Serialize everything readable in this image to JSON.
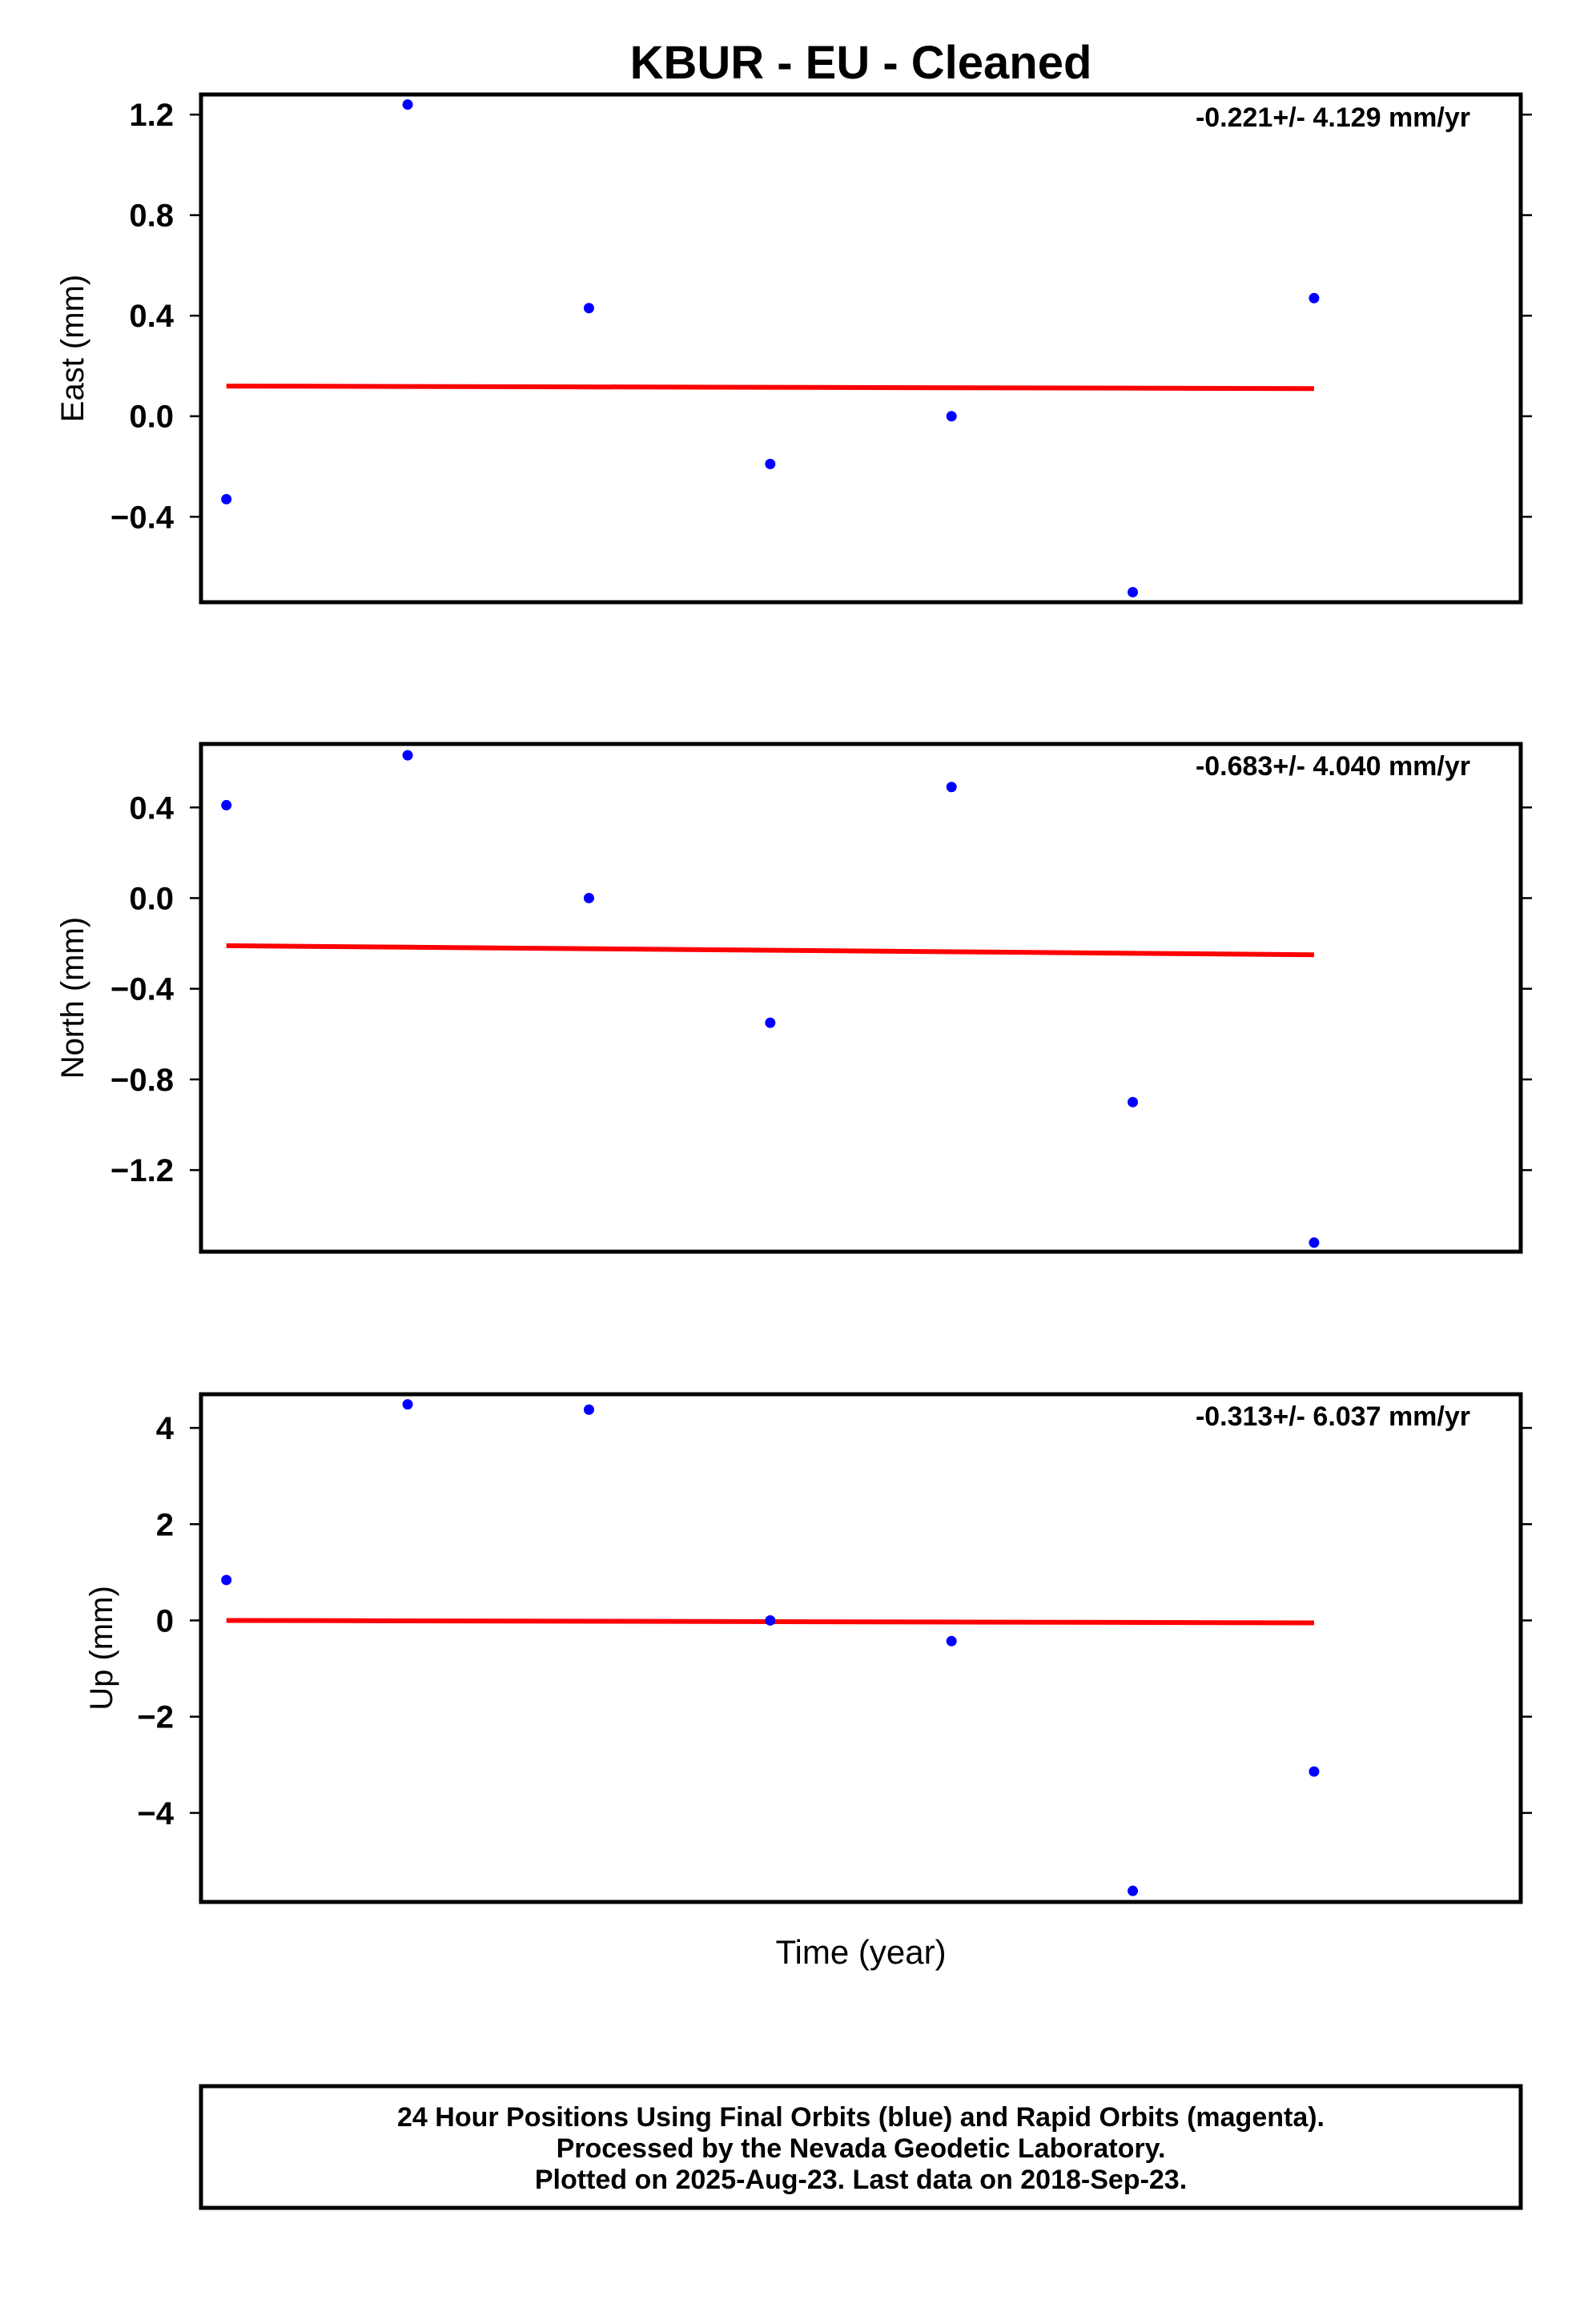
{
  "chart_data": [
    {
      "type": "scatter",
      "title": "KBUR  - EU - Cleaned",
      "ylabel": "East (mm)",
      "rate_label": "-0.221+/- 4.129 mm/yr",
      "ylim": [
        -0.74,
        1.28
      ],
      "yticks": [
        1.2,
        0.8,
        0.4,
        0.0,
        -0.4
      ],
      "ytick_labels": [
        "1.2",
        "0.8",
        "0.4",
        "0.0",
        "−0.4"
      ],
      "x": [
        1,
        2,
        3,
        4,
        5,
        6,
        7
      ],
      "xlim": [
        0.86,
        8.14
      ],
      "values": [
        -0.33,
        1.24,
        0.43,
        -0.19,
        0.0,
        -0.7,
        0.47
      ],
      "trend": [
        0.12,
        0.11
      ],
      "point_color": "#0000ff",
      "trend_color": "#ff0000"
    },
    {
      "type": "scatter",
      "ylabel": "North (mm)",
      "rate_label": "-0.683+/- 4.040 mm/yr",
      "ylim": [
        -1.56,
        0.68
      ],
      "yticks": [
        0.4,
        0.0,
        -0.4,
        -0.8,
        -1.2
      ],
      "ytick_labels": [
        "0.4",
        "0.0",
        "−0.4",
        "−0.8",
        "−1.2"
      ],
      "x": [
        1,
        2,
        3,
        4,
        5,
        6,
        7
      ],
      "xlim": [
        0.86,
        8.14
      ],
      "values": [
        0.41,
        0.63,
        0.0,
        -0.55,
        0.49,
        -0.9,
        -1.52
      ],
      "trend": [
        -0.21,
        -0.25
      ],
      "point_color": "#0000ff",
      "trend_color": "#ff0000"
    },
    {
      "type": "scatter",
      "ylabel": "Up (mm)",
      "rate_label": "-0.313+/- 6.037 mm/yr",
      "ylim": [
        -5.85,
        4.7
      ],
      "yticks": [
        4,
        2,
        0,
        -2,
        -4
      ],
      "ytick_labels": [
        "4",
        "2",
        "0",
        "−2",
        "−4"
      ],
      "x": [
        1,
        2,
        3,
        4,
        5,
        6,
        7
      ],
      "xlim": [
        0.86,
        8.14
      ],
      "values": [
        0.84,
        4.49,
        4.38,
        0.0,
        -0.43,
        -5.62,
        -3.14
      ],
      "trend": [
        0.0,
        -0.05
      ],
      "point_color": "#0000ff",
      "trend_color": "#ff0000"
    }
  ],
  "xlabel": "Time (year)",
  "footer": {
    "line1": "24 Hour Positions Using Final Orbits (blue) and Rapid Orbits (magenta).",
    "line2": "Processed by the Nevada Geodetic Laboratory.",
    "line3": "Plotted on 2025-Aug-23. Last data on 2018-Sep-23."
  }
}
